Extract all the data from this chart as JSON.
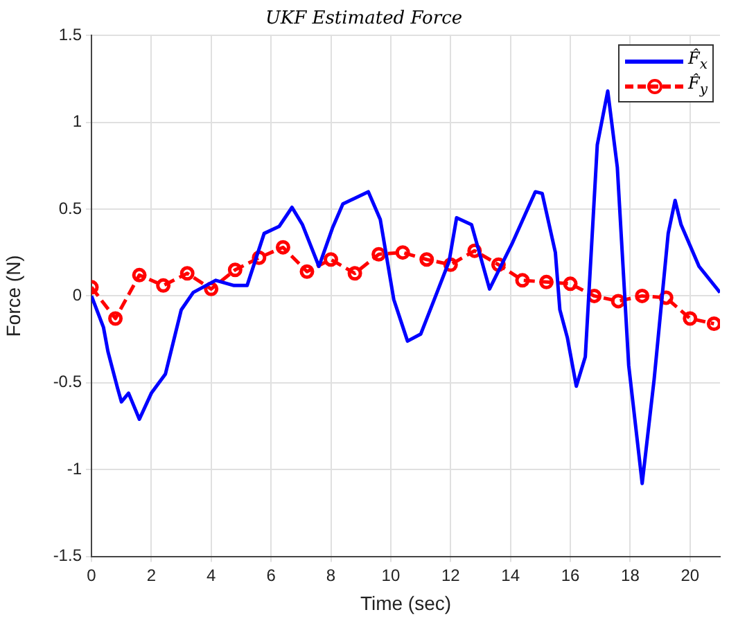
{
  "chart_data": {
    "type": "line",
    "title": "UKF Estimated Force",
    "xlabel": "Time (sec)",
    "ylabel": "Force (N)",
    "xlim": [
      0,
      21
    ],
    "xticks": [
      0,
      2,
      4,
      6,
      8,
      10,
      12,
      14,
      16,
      18,
      20
    ],
    "ylim": [
      -1.5,
      1.5
    ],
    "yticks": [
      -1.5,
      -1,
      -0.5,
      0,
      0.5,
      1,
      1.5
    ],
    "grid": true,
    "legend": "top right",
    "series": [
      {
        "name": "F̂$_{x}$",
        "color": "#0000ff",
        "marker": "none",
        "line_style": "solid",
        "x": [
          0,
          0.4,
          0.55,
          0.87,
          1.0,
          1.24,
          1.6,
          2.0,
          2.47,
          3.0,
          3.4,
          4.15,
          4.76,
          5.2,
          5.77,
          6.27,
          6.7,
          7.05,
          7.6,
          8.05,
          8.4,
          9.25,
          9.65,
          10.1,
          10.56,
          11.0,
          11.5,
          11.95,
          12.2,
          12.7,
          13.3,
          14.05,
          14.83,
          15.06,
          15.5,
          15.65,
          15.9,
          16.2,
          16.5,
          16.9,
          17.25,
          17.57,
          17.95,
          18.4,
          18.8,
          19.27,
          19.5,
          19.7,
          20.3,
          21
        ],
        "values": [
          0,
          -0.18,
          -0.32,
          -0.53,
          -0.61,
          -0.56,
          -0.71,
          -0.56,
          -0.45,
          -0.08,
          0.02,
          0.09,
          0.06,
          0.06,
          0.36,
          0.4,
          0.51,
          0.41,
          0.17,
          0.39,
          0.53,
          0.6,
          0.44,
          -0.02,
          -0.26,
          -0.22,
          0,
          0.2,
          0.45,
          0.41,
          0.04,
          0.3,
          0.6,
          0.59,
          0.25,
          -0.08,
          -0.24,
          -0.52,
          -0.35,
          0.87,
          1.18,
          0.74,
          -0.4,
          -1.08,
          -0.48,
          0.36,
          0.55,
          0.41,
          0.17,
          0.02
        ]
      },
      {
        "name": "F̂$_{y}$",
        "color": "#ff0000",
        "marker": "circle",
        "line_style": "dashed",
        "x": [
          0,
          0.8,
          1.6,
          2.4,
          3.2,
          4.0,
          4.8,
          5.6,
          6.4,
          7.2,
          8.0,
          8.8,
          9.6,
          10.4,
          11.2,
          12.0,
          12.8,
          13.6,
          14.4,
          15.2,
          16.0,
          16.8,
          17.6,
          18.4,
          19.2,
          20.0,
          20.8
        ],
        "values": [
          0.05,
          -0.13,
          0.12,
          0.06,
          0.13,
          0.04,
          0.15,
          0.22,
          0.28,
          0.14,
          0.21,
          0.13,
          0.24,
          0.25,
          0.21,
          0.18,
          0.26,
          0.18,
          0.09,
          0.08,
          0.07,
          0,
          -0.03,
          0,
          -0.01,
          -0.13,
          -0.16
        ]
      }
    ]
  }
}
